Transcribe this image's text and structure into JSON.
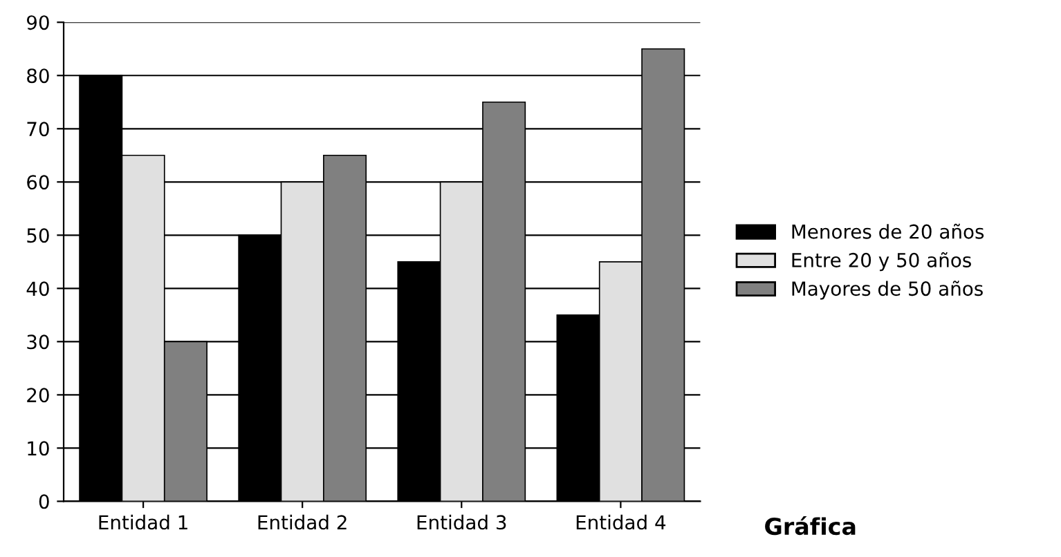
{
  "chart_data": {
    "type": "bar",
    "categories": [
      "Entidad 1",
      "Entidad 2",
      "Entidad 3",
      "Entidad 4"
    ],
    "series": [
      {
        "name": "Menores de 20 años",
        "color": "#000000",
        "values": [
          80,
          50,
          45,
          35
        ]
      },
      {
        "name": "Entre 20 y 50 años",
        "color": "#e0e0e0",
        "values": [
          65,
          60,
          60,
          45
        ]
      },
      {
        "name": "Mayores de 50 años",
        "color": "#808080",
        "values": [
          30,
          65,
          75,
          85
        ]
      }
    ],
    "ylim": [
      0,
      90
    ],
    "yticks": [
      0,
      10,
      20,
      30,
      40,
      50,
      60,
      70,
      80,
      90
    ],
    "grid": "y",
    "legend": "right",
    "annotations": [
      "Gráfica"
    ]
  }
}
